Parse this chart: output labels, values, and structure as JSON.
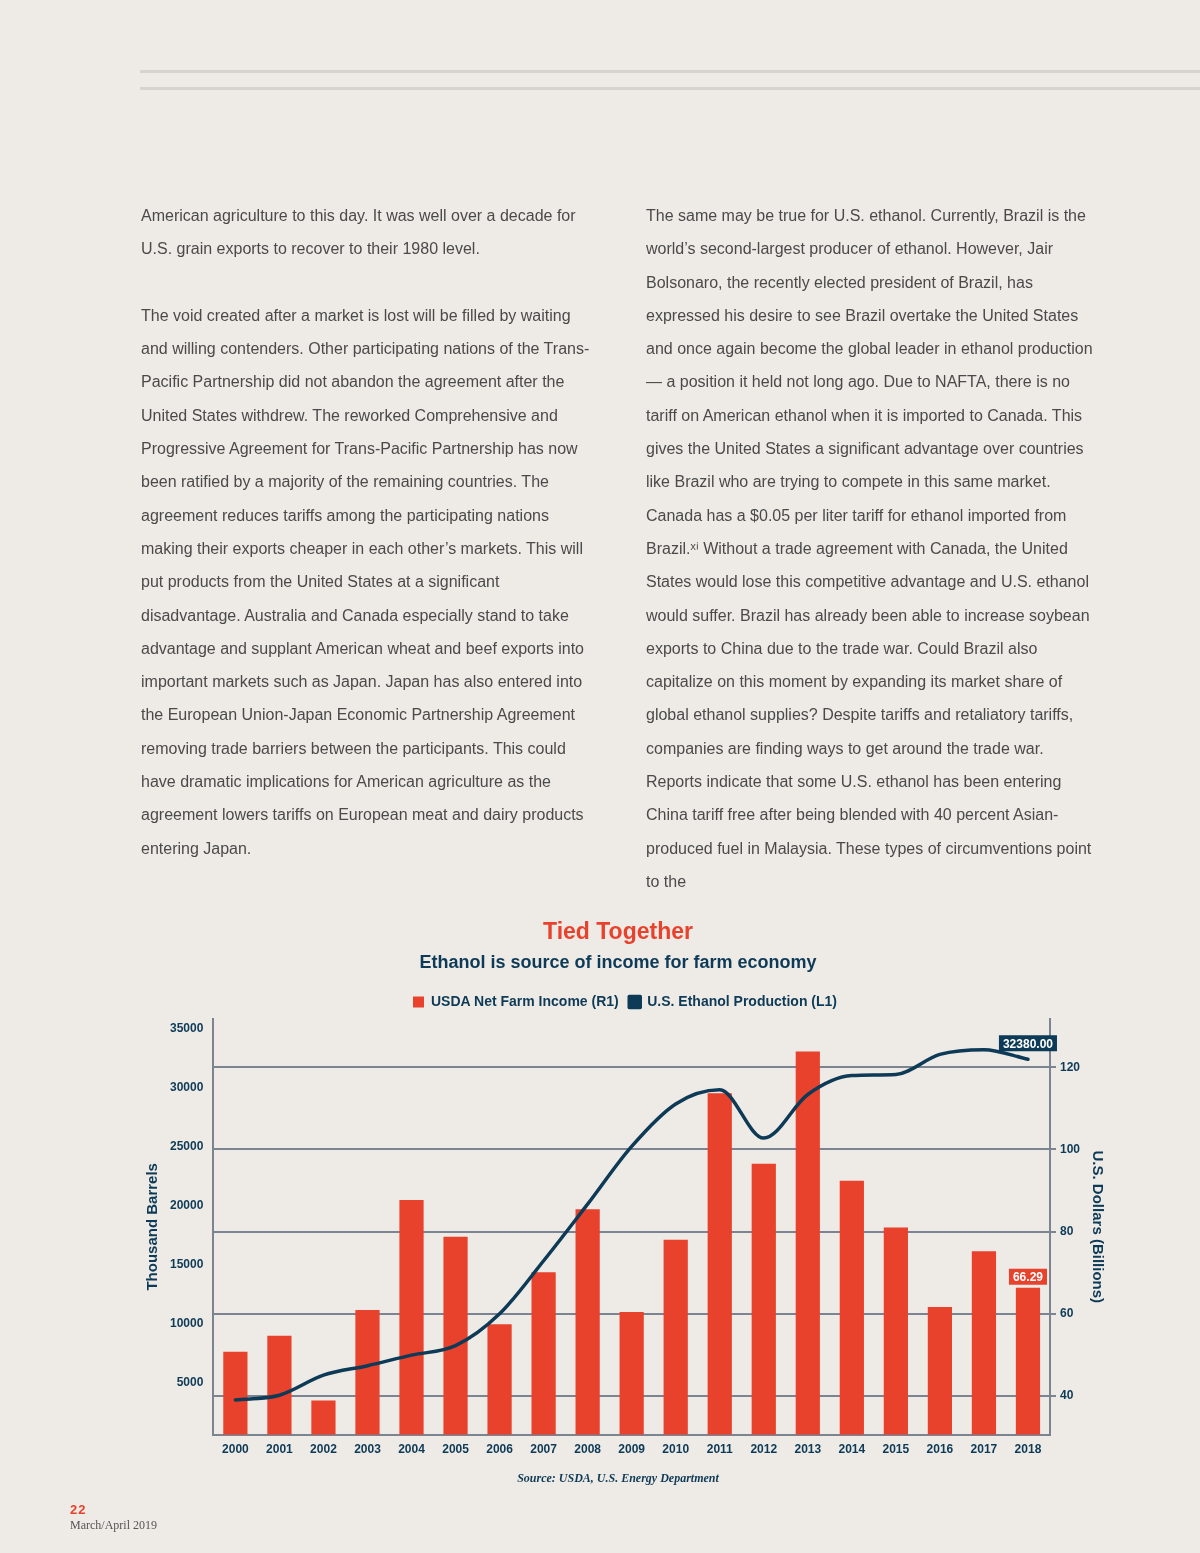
{
  "chart_data": {
    "type": "bar",
    "title": "Tied Together",
    "subtitle": "Ethanol is source of income for farm economy",
    "categories": [
      "2000",
      "2001",
      "2002",
      "2003",
      "2004",
      "2005",
      "2006",
      "2007",
      "2008",
      "2009",
      "2010",
      "2011",
      "2012",
      "2013",
      "2014",
      "2015",
      "2016",
      "2017",
      "2018"
    ],
    "series": [
      {
        "name": "USDA Net Farm Income (R1)",
        "axis": "y2",
        "color": "#e8412c",
        "values": [
          50.7,
          54.6,
          38.8,
          60.9,
          87.7,
          78.7,
          57.4,
          70.1,
          85.4,
          60.4,
          78.0,
          113.7,
          96.5,
          123.9,
          92.4,
          81.0,
          61.6,
          75.2,
          66.29
        ],
        "value_labels": [
          null,
          null,
          null,
          null,
          null,
          null,
          null,
          null,
          null,
          null,
          null,
          null,
          null,
          null,
          null,
          null,
          null,
          null,
          "66.29"
        ]
      },
      {
        "name": "U.S. Ethanol Production (L1)",
        "type": "line",
        "color": "#0d3a56",
        "values": [
          3500,
          3900,
          5600,
          6400,
          7300,
          8100,
          10800,
          15300,
          20100,
          25000,
          28600,
          29800,
          25700,
          29400,
          31000,
          31100,
          32800,
          33200,
          32380
        ],
        "value_labels": [
          null,
          null,
          null,
          null,
          null,
          null,
          null,
          null,
          null,
          null,
          null,
          null,
          null,
          null,
          null,
          null,
          null,
          null,
          "32380.00"
        ]
      }
    ],
    "ylim": [
      560,
      35800
    ],
    "yticks": [
      5000,
      10000,
      15000,
      20000,
      25000,
      30000,
      35000
    ],
    "y2lim": [
      30.5,
      131.8
    ],
    "y2ticks": [
      40,
      60,
      80,
      100,
      120
    ],
    "ylabel": "Thousand Barrels",
    "y2label": "U.S. Dollars (Billions)",
    "legend": "top",
    "grid": "y",
    "annotations": [
      "American agriculture to this day. It was well over a decade for U.S. grain exports to recover to their 1980 level.",
      "The void created after a market is lost will be filled by waiting and willing contenders. Other participating nations of the Trans-Pacific Partnership did not abandon the agreement after the United States withdrew. The reworked Comprehensive and Progressive Agreement for Trans-Pacific Partnership has now been ratified by a majority of the remaining countries. The agreement reduces tariffs among the participating nations making their exports cheaper in each other’s markets. This will put products from the United States at a significant disadvantage. Australia and Canada especially stand to take advantage and supplant American wheat and beef exports into important markets such as Japan. Japan has also entered into the European Union-Japan Economic Partnership Agreement removing trade barriers between the participants. This could have dramatic implications for American agriculture as the agreement lowers tariffs on European meat and dairy products entering Japan.",
      "The same may be true for U.S. ethanol. Currently, Brazil is the world’s second-largest producer of ethanol. However, Jair Bolsonaro, the recently elected president of Brazil, has expressed his desire to see Brazil overtake the United States and once again become the global leader in ethanol production — a position it held not long ago. Due to NAFTA, there is no tariff on American ethanol when it is imported to Canada. This gives the United States a significant advantage over countries like Brazil who are trying to compete in this same market. Canada has a $0.05 per liter tariff for ethanol imported from Brazil.ˣⁱ Without a trade agreement with Canada, the United States would lose this competitive advantage and U.S. ethanol would suffer. Brazil has already been able to increase soybean exports to China due to the trade war. Could Brazil also capitalize on this moment by expanding its market share of global ethanol supplies? Despite tariffs and retaliatory tariffs, companies are finding ways to get around the trade war. Reports indicate that some U.S. ethanol has been entering China tariff free after being blended with 40 percent Asian-produced fuel in Malaysia. These types of circumventions point to the",
      "Source: USDA, U.S. Energy Department",
      "22",
      "March/April 2019"
    ]
  }
}
